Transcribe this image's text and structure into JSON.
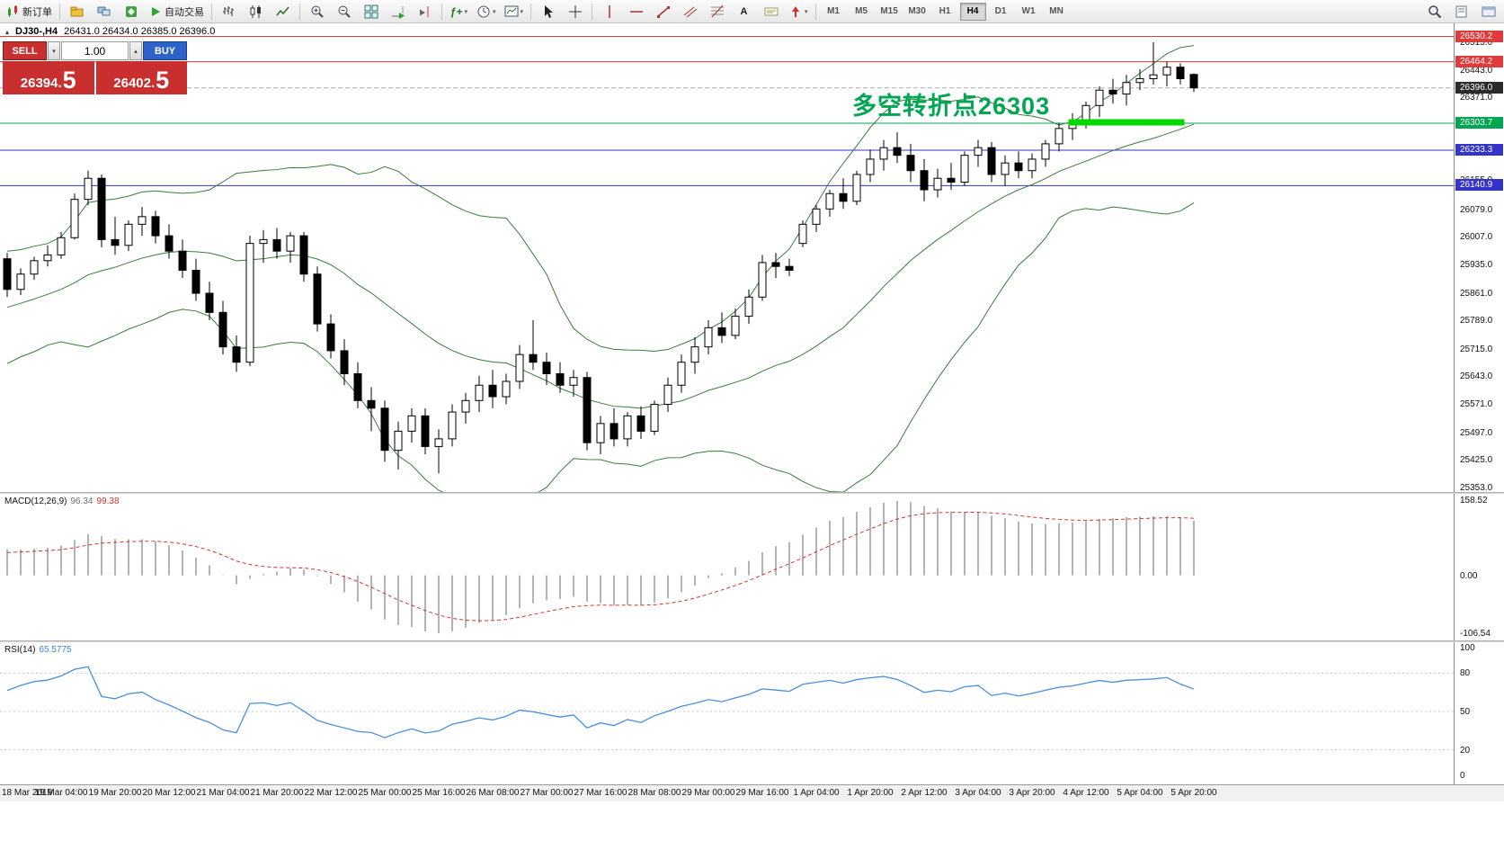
{
  "icons": {
    "caret_down": "▾",
    "caret_up": "▴",
    "collapse": "▴",
    "text_tool": "A",
    "indicator_fx": "ƒ+"
  },
  "toolbar": {
    "new_order_label": "新订单",
    "autotrading_label": "自动交易",
    "timeframes": [
      "M1",
      "M5",
      "M15",
      "M30",
      "H1",
      "H4",
      "D1",
      "W1",
      "MN"
    ],
    "active_timeframe": "H4"
  },
  "chart": {
    "title_symbol": "DJ30-,H4",
    "title_ohlc": "26431.0 26434.0 26385.0 26396.0",
    "annotation": {
      "text": "多空转折点26303",
      "color": "#00a651"
    },
    "trade_panel": {
      "sell_label": "SELL",
      "buy_label": "BUY",
      "volume": "1.00",
      "sell_price_main": "26394.",
      "sell_price_big": "5",
      "buy_price_main": "26402.",
      "buy_price_big": "5",
      "sell_color": "#c92f2f",
      "buy_color": "#2f62c9",
      "tile_color": "#c92f2f"
    },
    "axis_labels": [
      "26515.0",
      "26443.0",
      "26371.0",
      "26299.0",
      "26227.0",
      "26155.0",
      "26079.0",
      "26007.0",
      "25935.0",
      "25861.0",
      "25789.0",
      "25715.0",
      "25643.0",
      "25571.0",
      "25497.0",
      "25425.0",
      "25353.0"
    ]
  },
  "chart_data": {
    "type": "candlestick",
    "symbol": "DJ30-",
    "period": "H4",
    "price_axis": {
      "top_price": 26515.0,
      "bottom_price": 25353.0
    },
    "colors": {
      "candle_up": "#ffffff",
      "candle_down": "#000000",
      "wick": "#000000",
      "bollinger": "#3c7a3c",
      "macd_hist": "#b3b3b3",
      "macd_signal": "#d23434",
      "rsi_line": "#4a8fd8"
    },
    "warmup_closes": [
      25700,
      25720,
      25715,
      25745,
      25760,
      25750,
      25785,
      25805,
      25795,
      25825,
      25845,
      25835,
      25865,
      25885,
      25875,
      25895,
      25915,
      25935,
      25945
    ],
    "candles": [
      [
        25950,
        25965,
        25850,
        25870
      ],
      [
        25870,
        25925,
        25855,
        25910
      ],
      [
        25910,
        25955,
        25895,
        25945
      ],
      [
        25945,
        25985,
        25930,
        25960
      ],
      [
        25960,
        26020,
        25950,
        26005
      ],
      [
        26005,
        26120,
        26000,
        26105
      ],
      [
        26105,
        26180,
        26090,
        26160
      ],
      [
        26160,
        26170,
        25980,
        26000
      ],
      [
        26000,
        26060,
        25960,
        25985
      ],
      [
        25985,
        26050,
        25970,
        26040
      ],
      [
        26040,
        26085,
        26010,
        26060
      ],
      [
        26060,
        26075,
        25990,
        26010
      ],
      [
        26010,
        26040,
        25950,
        25970
      ],
      [
        25970,
        26000,
        25900,
        25920
      ],
      [
        25920,
        25950,
        25840,
        25860
      ],
      [
        25860,
        25890,
        25790,
        25810
      ],
      [
        25810,
        25840,
        25700,
        25720
      ],
      [
        25720,
        25750,
        25655,
        25680
      ],
      [
        25680,
        26010,
        25670,
        25990
      ],
      [
        25990,
        26025,
        25940,
        26000
      ],
      [
        26000,
        26030,
        25950,
        25970
      ],
      [
        25970,
        26020,
        25940,
        26010
      ],
      [
        26010,
        26020,
        25890,
        25910
      ],
      [
        25910,
        25930,
        25760,
        25780
      ],
      [
        25780,
        25805,
        25690,
        25710
      ],
      [
        25710,
        25740,
        25620,
        25650
      ],
      [
        25650,
        25680,
        25560,
        25580
      ],
      [
        25580,
        25615,
        25500,
        25560
      ],
      [
        25560,
        25580,
        25420,
        25450
      ],
      [
        25450,
        25525,
        25400,
        25500
      ],
      [
        25500,
        25560,
        25470,
        25540
      ],
      [
        25540,
        25560,
        25440,
        25460
      ],
      [
        25460,
        25505,
        25390,
        25480
      ],
      [
        25480,
        25570,
        25460,
        25550
      ],
      [
        25550,
        25600,
        25520,
        25580
      ],
      [
        25580,
        25645,
        25550,
        25620
      ],
      [
        25620,
        25660,
        25560,
        25590
      ],
      [
        25590,
        25650,
        25570,
        25630
      ],
      [
        25630,
        25725,
        25610,
        25700
      ],
      [
        25700,
        25790,
        25660,
        25680
      ],
      [
        25680,
        25705,
        25620,
        25650
      ],
      [
        25650,
        25680,
        25600,
        25620
      ],
      [
        25620,
        25660,
        25590,
        25640
      ],
      [
        25640,
        25655,
        25450,
        25470
      ],
      [
        25470,
        25540,
        25440,
        25520
      ],
      [
        25520,
        25560,
        25460,
        25480
      ],
      [
        25480,
        25550,
        25460,
        25540
      ],
      [
        25540,
        25565,
        25480,
        25500
      ],
      [
        25500,
        25580,
        25490,
        25570
      ],
      [
        25570,
        25640,
        25550,
        25620
      ],
      [
        25620,
        25700,
        25600,
        25680
      ],
      [
        25680,
        25745,
        25650,
        25720
      ],
      [
        25720,
        25790,
        25700,
        25770
      ],
      [
        25770,
        25810,
        25730,
        25750
      ],
      [
        25750,
        25820,
        25740,
        25800
      ],
      [
        25800,
        25870,
        25780,
        25850
      ],
      [
        25850,
        25960,
        25840,
        25940
      ],
      [
        25940,
        25965,
        25900,
        25930
      ],
      [
        25930,
        25950,
        25905,
        25920
      ],
      [
        25990,
        26050,
        25980,
        26040
      ],
      [
        26040,
        26090,
        26020,
        26080
      ],
      [
        26080,
        26130,
        26060,
        26120
      ],
      [
        26120,
        26160,
        26080,
        26100
      ],
      [
        26100,
        26180,
        26090,
        26170
      ],
      [
        26170,
        26235,
        26150,
        26210
      ],
      [
        26210,
        26260,
        26180,
        26240
      ],
      [
        26240,
        26280,
        26200,
        26220
      ],
      [
        26220,
        26250,
        26150,
        26180
      ],
      [
        26180,
        26210,
        26100,
        26130
      ],
      [
        26130,
        26185,
        26110,
        26160
      ],
      [
        26160,
        26200,
        26130,
        26150
      ],
      [
        26150,
        26230,
        26140,
        26220
      ],
      [
        26220,
        26260,
        26190,
        26240
      ],
      [
        26240,
        26255,
        26150,
        26170
      ],
      [
        26170,
        26220,
        26140,
        26200
      ],
      [
        26200,
        26230,
        26160,
        26180
      ],
      [
        26180,
        26225,
        26160,
        26210
      ],
      [
        26210,
        26260,
        26190,
        26250
      ],
      [
        26250,
        26305,
        26230,
        26290
      ],
      [
        26290,
        26330,
        26260,
        26310
      ],
      [
        26310,
        26360,
        26290,
        26350
      ],
      [
        26350,
        26400,
        26320,
        26390
      ],
      [
        26390,
        26420,
        26355,
        26380
      ],
      [
        26380,
        26430,
        26350,
        26410
      ],
      [
        26410,
        26445,
        26390,
        26420
      ],
      [
        26420,
        26515,
        26405,
        26430
      ],
      [
        26430,
        26465,
        26400,
        26450
      ],
      [
        26450,
        26460,
        26405,
        26420
      ],
      [
        26431,
        26434,
        26385,
        26396
      ]
    ],
    "bollinger": {
      "period": 20,
      "deviation": 2
    },
    "price_lines": [
      {
        "price": 26530.2,
        "label": "26530.2",
        "color": "#e03a3a",
        "tag_bg": "#e03a3a",
        "style": "solid"
      },
      {
        "price": 26464.2,
        "label": "26464.2",
        "color": "#e03a3a",
        "tag_bg": "#e03a3a",
        "style": "solid"
      },
      {
        "price": 26396.0,
        "label": "26396.0",
        "color": "#ababab",
        "tag_bg": "#2b2b2b",
        "style": "dashed"
      },
      {
        "price": 26303.7,
        "label": "26303.7",
        "color": "#00a651",
        "tag_bg": "#00a651",
        "style": "solid"
      },
      {
        "price": 26233.3,
        "label": "26233.3",
        "color": "#3434c8",
        "tag_bg": "#3434c8",
        "style": "solid"
      },
      {
        "price": 26140.9,
        "label": "26140.9",
        "color": "#3434c8",
        "tag_bg": "#3434c8",
        "style": "solid"
      }
    ],
    "support_segment": {
      "price": 26306,
      "bar_start": 78.7,
      "bar_end": 87.3,
      "color": "#00d800",
      "thickness": 7
    },
    "macd": {
      "label": "MACD(12,26,9)",
      "fast": 12,
      "slow": 26,
      "signal": 9,
      "value_main": "96.34",
      "value_signal": "99.38",
      "scale_labels": [
        "158.52",
        "0.00",
        "-106.54"
      ]
    },
    "rsi": {
      "label": "RSI(14)",
      "period": 14,
      "value": "65.5775",
      "scale_labels": [
        "100",
        "80",
        "50",
        "20",
        "0"
      ],
      "levels": [
        80,
        50,
        20
      ]
    },
    "time_labels": [
      {
        "bar": 0,
        "text": "18 Mar 2019"
      },
      {
        "bar": 4,
        "text": "19 Mar 04:00"
      },
      {
        "bar": 8,
        "text": "19 Mar 20:00"
      },
      {
        "bar": 12,
        "text": "20 Mar 12:00"
      },
      {
        "bar": 16,
        "text": "21 Mar 04:00"
      },
      {
        "bar": 20,
        "text": "21 Mar 20:00"
      },
      {
        "bar": 24,
        "text": "22 Mar 12:00"
      },
      {
        "bar": 28,
        "text": "25 Mar 00:00"
      },
      {
        "bar": 32,
        "text": "25 Mar 16:00"
      },
      {
        "bar": 36,
        "text": "26 Mar 08:00"
      },
      {
        "bar": 40,
        "text": "27 Mar 00:00"
      },
      {
        "bar": 44,
        "text": "27 Mar 16:00"
      },
      {
        "bar": 48,
        "text": "28 Mar 08:00"
      },
      {
        "bar": 52,
        "text": "29 Mar 00:00"
      },
      {
        "bar": 56,
        "text": "29 Mar 16:00"
      },
      {
        "bar": 60,
        "text": "1 Apr 04:00"
      },
      {
        "bar": 64,
        "text": "1 Apr 20:00"
      },
      {
        "bar": 68,
        "text": "2 Apr 12:00"
      },
      {
        "bar": 72,
        "text": "3 Apr 04:00"
      },
      {
        "bar": 76,
        "text": "3 Apr 20:00"
      },
      {
        "bar": 80,
        "text": "4 Apr 12:00"
      },
      {
        "bar": 84,
        "text": "5 Apr 04:00"
      },
      {
        "bar": 88,
        "text": "5 Apr 20:00"
      }
    ]
  }
}
